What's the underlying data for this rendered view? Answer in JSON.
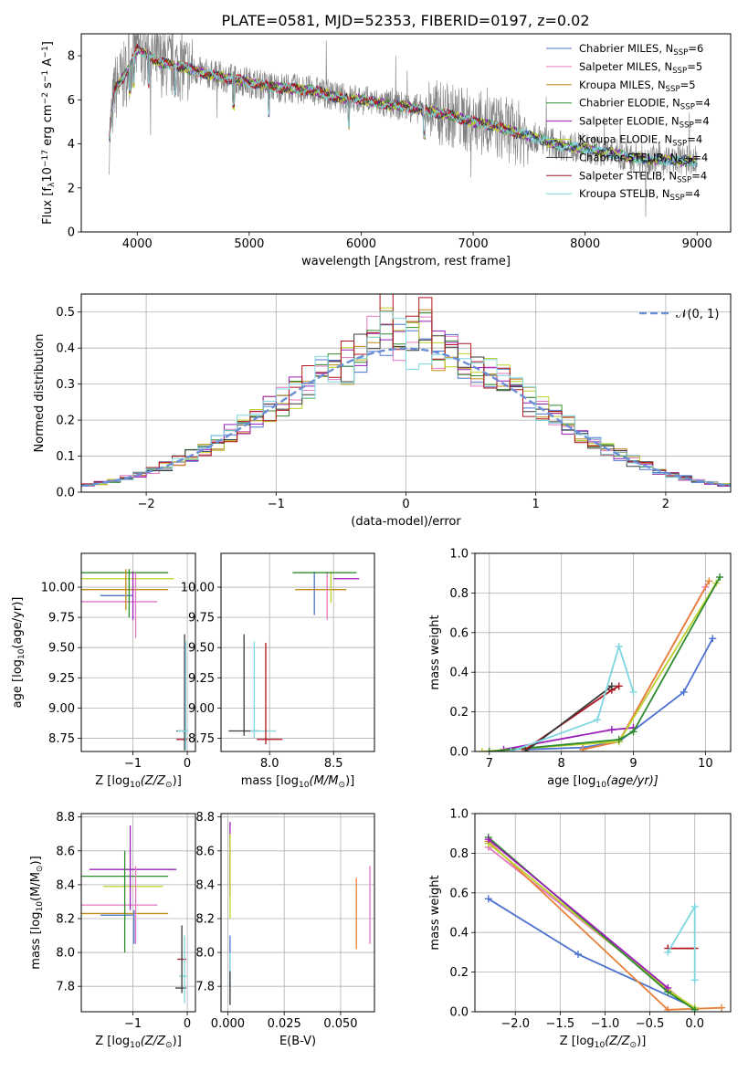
{
  "figure": {
    "title": "PLATE=0581, MJD=52353, FIBERID=0197, z=0.02"
  },
  "legend_entries": [
    {
      "name": "Chabrier MILES, N",
      "sub": "SSP",
      "suffix": "=6",
      "color": "#4c72d0"
    },
    {
      "name": "Salpeter MILES, N",
      "sub": "SSP",
      "suffix": "=5",
      "color": "#e377c2"
    },
    {
      "name": "Kroupa MILES, N",
      "sub": "SSP",
      "suffix": "=5",
      "color": "#c08a16"
    },
    {
      "name": "Chabrier ELODIE, N",
      "sub": "SSP",
      "suffix": "=4",
      "color": "#2e8b2e"
    },
    {
      "name": "Salpeter ELODIE, N",
      "sub": "SSP",
      "suffix": "=4",
      "color": "#9b1fb8"
    },
    {
      "name": "Kroupa ELODIE, N",
      "sub": "SSP",
      "suffix": "=4",
      "color": "#bcd22b"
    },
    {
      "name": "Chabrier STELIB, N",
      "sub": "SSP",
      "suffix": "=4",
      "color": "#3a3a3a"
    },
    {
      "name": "Salpeter STELIB, N",
      "sub": "SSP",
      "suffix": "=4",
      "color": "#b0141c"
    },
    {
      "name": "Kroupa STELIB, N",
      "sub": "SSP",
      "suffix": "=4",
      "color": "#7fd6e0"
    }
  ],
  "chart_data": [
    {
      "id": "spectrum",
      "type": "line",
      "xlabel": "wavelength [Angstrom, rest frame]",
      "ylabel": "Flux [f",
      "ylabel_parts": [
        "Flux [f",
        "λ",
        "10",
        "−17",
        " erg cm",
        "−2",
        " s",
        "−1",
        " A",
        "−1",
        "]"
      ],
      "xlim": [
        3500,
        9300
      ],
      "ylim": [
        0,
        9
      ],
      "xticks": [
        4000,
        5000,
        6000,
        7000,
        8000,
        9000
      ],
      "yticks": [
        0,
        2,
        4,
        6,
        8
      ],
      "continuum": {
        "x": [
          3750,
          3800,
          3900,
          4000,
          4100,
          4200,
          4400,
          4600,
          4800,
          5000,
          5200,
          5400,
          5600,
          5800,
          6000,
          6200,
          6400,
          6600,
          6800,
          7000,
          7200,
          7400,
          7600,
          7800,
          8000,
          8200,
          8400,
          8600,
          8800,
          9000
        ],
        "y": [
          4.2,
          6.5,
          7.2,
          8.3,
          8.0,
          7.7,
          7.5,
          7.2,
          7.0,
          6.8,
          6.6,
          6.5,
          6.4,
          6.1,
          6.0,
          5.8,
          5.7,
          5.5,
          5.3,
          5.0,
          4.8,
          4.5,
          4.2,
          3.9,
          3.8,
          3.6,
          3.4,
          3.3,
          3.25,
          3.2
        ]
      }
    },
    {
      "id": "residuals",
      "type": "line",
      "xlabel": "(data-model)/error",
      "ylabel": "Normed distribution",
      "xlim": [
        -2.5,
        2.5
      ],
      "ylim": [
        0,
        0.55
      ],
      "xticks": [
        -2,
        -1,
        0,
        1,
        2
      ],
      "yticks": [
        0.0,
        0.1,
        0.2,
        0.3,
        0.4,
        0.5
      ],
      "legend": "𝒩(0, 1)",
      "gaussian": {
        "mu": 0,
        "sigma": 1
      },
      "bin_width": 0.1
    },
    {
      "id": "age-vs-Z",
      "type": "scatter",
      "xlabel": "Z [log",
      "xlabel_parts": [
        "Z [log",
        "10",
        "(Z/Z",
        "⊙",
        ")]"
      ],
      "ylabel_parts": [
        "age  [log",
        "10",
        "(age/yr)]"
      ],
      "xlim": [
        -1.95,
        0.15
      ],
      "ylim": [
        8.64,
        10.28
      ],
      "xticks": [
        -1,
        0
      ],
      "yticks": [
        8.75,
        9.0,
        9.25,
        9.5,
        9.75,
        10.0
      ],
      "points": [
        {
          "x": -1.3,
          "y": 9.93,
          "xerr": 0.3,
          "yerr": 0.0,
          "color": "#4c72d0"
        },
        {
          "x": -1.3,
          "y": 9.88,
          "xerr": 0.75,
          "yerr": 0.0,
          "color": "#e377c2"
        },
        {
          "x": -1.3,
          "y": 9.98,
          "xerr": 0.95,
          "yerr": 0.0,
          "color": "#c08a16"
        },
        {
          "x": -1.3,
          "y": 10.12,
          "xerr": 0.95,
          "yerr": 0.0,
          "color": "#2e8b2e"
        },
        {
          "x": -1.3,
          "y": 10.07,
          "xerr": 1.05,
          "yerr": 0.0,
          "color": "#bcd22b"
        },
        {
          "x": -1.13,
          "y": 9.98,
          "xerr": 0.0,
          "yerr": 0.17,
          "color": "#c08a16"
        },
        {
          "x": -1.07,
          "y": 9.95,
          "xerr": 0.0,
          "yerr": 0.2,
          "color": "#2e8b2e"
        },
        {
          "x": -1.0,
          "y": 9.93,
          "xerr": 0.0,
          "yerr": 0.2,
          "color": "#9b1fb8"
        },
        {
          "x": -0.95,
          "y": 9.85,
          "xerr": 0.0,
          "yerr": 0.27,
          "color": "#e377c2"
        },
        {
          "x": -0.1,
          "y": 8.74,
          "xerr": 0.1,
          "yerr": 0.0,
          "color": "#b0141c"
        },
        {
          "x": -0.1,
          "y": 8.81,
          "xerr": 0.1,
          "yerr": 0.0,
          "color": "#3a3a3a"
        },
        {
          "x": -0.05,
          "y": 9.13,
          "xerr": 0.0,
          "yerr": 0.48,
          "color": "#3a3a3a"
        },
        {
          "x": -0.03,
          "y": 9.1,
          "xerr": 0.0,
          "yerr": 0.45,
          "color": "#7fd6e0"
        },
        {
          "x": -0.08,
          "y": 8.81,
          "xerr": 0.1,
          "yerr": 0.0,
          "color": "#7fd6e0"
        }
      ]
    },
    {
      "id": "age-vs-mass",
      "type": "scatter",
      "xlabel_parts": [
        "mass [log",
        "10",
        "(M/M",
        "⊙",
        ")]"
      ],
      "xlim": [
        7.62,
        8.82
      ],
      "ylim": [
        8.64,
        10.28
      ],
      "xticks": [
        8.0,
        8.5
      ],
      "yticks": [
        8.75,
        9.0,
        9.25,
        9.5,
        9.75,
        10.0
      ],
      "points": [
        {
          "x": 8.35,
          "y": 9.95,
          "xerr": 0.0,
          "yerr": 0.18,
          "color": "#4c72d0"
        },
        {
          "x": 8.4,
          "y": 9.98,
          "xerr": 0.2,
          "yerr": 0.0,
          "color": "#c08a16"
        },
        {
          "x": 8.45,
          "y": 9.93,
          "xerr": 0.0,
          "yerr": 0.2,
          "color": "#e377c2"
        },
        {
          "x": 8.5,
          "y": 10.12,
          "xerr": 0.0,
          "yerr": 0.0,
          "color": "#2e8b2e"
        },
        {
          "x": 8.48,
          "y": 10.0,
          "xerr": 0.0,
          "yerr": 0.13,
          "color": "#bcd22b"
        },
        {
          "x": 8.6,
          "y": 10.07,
          "xerr": 0.1,
          "yerr": 0.0,
          "color": "#9b1fb8"
        },
        {
          "x": 8.43,
          "y": 10.12,
          "xerr": 0.25,
          "yerr": 0.0,
          "color": "#2e8b2e"
        },
        {
          "x": 7.8,
          "y": 8.81,
          "xerr": 0.12,
          "yerr": 0.0,
          "color": "#3a3a3a"
        },
        {
          "x": 7.8,
          "y": 9.19,
          "xerr": 0.0,
          "yerr": 0.42,
          "color": "#3a3a3a"
        },
        {
          "x": 7.88,
          "y": 9.15,
          "xerr": 0.0,
          "yerr": 0.4,
          "color": "#7fd6e0"
        },
        {
          "x": 7.95,
          "y": 8.81,
          "xerr": 0.1,
          "yerr": 0.0,
          "color": "#7fd6e0"
        },
        {
          "x": 8.0,
          "y": 8.74,
          "xerr": 0.1,
          "yerr": 0.0,
          "color": "#b0141c"
        },
        {
          "x": 7.97,
          "y": 9.12,
          "xerr": 0.0,
          "yerr": 0.42,
          "color": "#b0141c"
        }
      ]
    },
    {
      "id": "mass-weight-vs-age",
      "type": "line",
      "xlabel_parts": [
        "age  [log",
        "10",
        "(age/yr)]"
      ],
      "ylabel": "mass weight",
      "xlim": [
        6.8,
        10.35
      ],
      "ylim": [
        0,
        1.0
      ],
      "xticks": [
        7,
        8,
        9,
        10
      ],
      "yticks": [
        0.0,
        0.2,
        0.4,
        0.6,
        0.8,
        1.0
      ],
      "series": [
        {
          "color": "#4c72d0",
          "x": [
            7.5,
            8.3,
            8.8,
            9.7,
            10.1
          ],
          "y": [
            0.01,
            0.02,
            0.05,
            0.3,
            0.57
          ]
        },
        {
          "color": "#e377c2",
          "x": [
            8.3,
            8.8,
            10.0
          ],
          "y": [
            0.01,
            0.05,
            0.83
          ]
        },
        {
          "color": "#e8823b",
          "x": [
            8.3,
            8.8,
            10.05
          ],
          "y": [
            0.01,
            0.05,
            0.86
          ]
        },
        {
          "color": "#9b1fb8",
          "x": [
            7.2,
            8.7,
            9.0
          ],
          "y": [
            0.01,
            0.11,
            0.12
          ]
        },
        {
          "color": "#bcd22b",
          "x": [
            6.9,
            8.8,
            10.15
          ],
          "y": [
            0.0,
            0.05,
            0.85
          ]
        },
        {
          "color": "#2e8b2e",
          "x": [
            7.0,
            8.8,
            9.0,
            10.2
          ],
          "y": [
            0.0,
            0.06,
            0.1,
            0.88
          ]
        },
        {
          "color": "#b0141c",
          "x": [
            7.5,
            8.7,
            8.8
          ],
          "y": [
            0.01,
            0.31,
            0.33
          ]
        },
        {
          "color": "#3a3a3a",
          "x": [
            7.5,
            8.7
          ],
          "y": [
            0.0,
            0.33
          ]
        },
        {
          "color": "#7fd6e0",
          "x": [
            7.3,
            8.5,
            8.8,
            9.0
          ],
          "y": [
            0.0,
            0.16,
            0.53,
            0.3
          ]
        }
      ]
    },
    {
      "id": "mass-vs-Z",
      "type": "scatter",
      "xlabel_parts": [
        "Z [log",
        "10",
        "(Z/Z",
        "⊙",
        ")]"
      ],
      "ylabel_parts": [
        "mass [log",
        "10",
        "(M/M",
        "⊙",
        ")]"
      ],
      "xlim": [
        -1.95,
        0.15
      ],
      "ylim": [
        7.65,
        8.82
      ],
      "xticks": [
        -1,
        0
      ],
      "yticks": [
        7.8,
        8.0,
        8.2,
        8.4,
        8.6,
        8.8
      ],
      "points": [
        {
          "x": -1.3,
          "y": 8.22,
          "xerr": 0.3,
          "yerr": 0.0,
          "color": "#4c72d0"
        },
        {
          "x": -1.3,
          "y": 8.28,
          "xerr": 0.75,
          "yerr": 0.0,
          "color": "#e377c2"
        },
        {
          "x": -1.3,
          "y": 8.23,
          "xerr": 0.95,
          "yerr": 0.0,
          "color": "#c08a16"
        },
        {
          "x": -1.3,
          "y": 8.45,
          "xerr": 0.95,
          "yerr": 0.0,
          "color": "#2e8b2e"
        },
        {
          "x": -1.0,
          "y": 8.49,
          "xerr": 0.8,
          "yerr": 0.0,
          "color": "#9b1fb8"
        },
        {
          "x": -1.0,
          "y": 8.39,
          "xerr": 0.55,
          "yerr": 0.0,
          "color": "#bcd22b"
        },
        {
          "x": -1.15,
          "y": 8.3,
          "xerr": 0.0,
          "yerr": 0.3,
          "color": "#2e8b2e"
        },
        {
          "x": -1.05,
          "y": 8.5,
          "xerr": 0.0,
          "yerr": 0.25,
          "color": "#9b1fb8"
        },
        {
          "x": -0.95,
          "y": 8.28,
          "xerr": 0.0,
          "yerr": 0.23,
          "color": "#e377c2"
        },
        {
          "x": -0.98,
          "y": 8.15,
          "xerr": 0.0,
          "yerr": 0.1,
          "color": "#4c72d0"
        },
        {
          "x": -0.1,
          "y": 7.96,
          "xerr": 0.08,
          "yerr": 0.0,
          "color": "#b0141c"
        },
        {
          "x": -0.12,
          "y": 7.79,
          "xerr": 0.1,
          "yerr": 0.0,
          "color": "#3a3a3a"
        },
        {
          "x": -0.08,
          "y": 7.86,
          "xerr": 0.07,
          "yerr": 0.0,
          "color": "#7fd6e0"
        },
        {
          "x": -0.1,
          "y": 7.96,
          "xerr": 0.0,
          "yerr": 0.2,
          "color": "#3a3a3a"
        },
        {
          "x": -0.05,
          "y": 7.9,
          "xerr": 0.0,
          "yerr": 0.2,
          "color": "#7fd6e0"
        }
      ]
    },
    {
      "id": "mass-vs-ebv",
      "type": "scatter",
      "xlabel": "E(B-V)",
      "xlim": [
        -0.003,
        0.065
      ],
      "ylim": [
        7.65,
        8.82
      ],
      "xticks": [
        0.0,
        0.025,
        0.05
      ],
      "xticklabels": [
        "0.000",
        "0.025",
        "0.050"
      ],
      "yticks": [
        7.8,
        8.0,
        8.2,
        8.4,
        8.6,
        8.8
      ],
      "points": [
        {
          "x": 0.001,
          "y": 8.55,
          "xerr": 0.0,
          "yerr": 0.22,
          "color": "#9b1fb8"
        },
        {
          "x": 0.001,
          "y": 8.45,
          "xerr": 0.0,
          "yerr": 0.25,
          "color": "#bcd22b"
        },
        {
          "x": 0.001,
          "y": 7.95,
          "xerr": 0.0,
          "yerr": 0.15,
          "color": "#4c72d0"
        },
        {
          "x": 0.001,
          "y": 7.85,
          "xerr": 0.0,
          "yerr": 0.15,
          "color": "#7fd6e0"
        },
        {
          "x": 0.001,
          "y": 7.79,
          "xerr": 0.0,
          "yerr": 0.1,
          "color": "#3a3a3a"
        },
        {
          "x": 0.057,
          "y": 8.23,
          "xerr": 0.0,
          "yerr": 0.21,
          "color": "#e8823b"
        },
        {
          "x": 0.063,
          "y": 8.28,
          "xerr": 0.0,
          "yerr": 0.23,
          "color": "#e377c2"
        }
      ]
    },
    {
      "id": "mass-weight-vs-Z",
      "type": "line",
      "xlabel_parts": [
        "Z [log",
        "10",
        "(Z/Z",
        "⊙",
        ")]"
      ],
      "ylabel": "mass weight",
      "xlim": [
        -2.45,
        0.4
      ],
      "ylim": [
        0,
        1.0
      ],
      "xticks": [
        -2.0,
        -1.5,
        -1.0,
        -0.5,
        0.0
      ],
      "yticks": [
        0.0,
        0.2,
        0.4,
        0.6,
        0.8,
        1.0
      ],
      "series": [
        {
          "color": "#4c72d0",
          "x": [
            -2.3,
            -1.3,
            0.0
          ],
          "y": [
            0.57,
            0.29,
            0.02
          ]
        },
        {
          "color": "#e377c2",
          "x": [
            -2.3,
            0.0
          ],
          "y": [
            0.83,
            0.01
          ]
        },
        {
          "color": "#e8823b",
          "x": [
            -2.3,
            -0.3,
            0.3
          ],
          "y": [
            0.86,
            0.01,
            0.02
          ]
        },
        {
          "color": "#bcd22b",
          "x": [
            -2.3,
            -0.3,
            0.0
          ],
          "y": [
            0.85,
            0.11,
            0.02
          ]
        },
        {
          "color": "#2e8b2e",
          "x": [
            -2.3,
            -0.3,
            0.0
          ],
          "y": [
            0.88,
            0.1,
            0.01
          ]
        },
        {
          "color": "#9b1fb8",
          "x": [
            -2.3,
            -0.3
          ],
          "y": [
            0.87,
            0.12
          ]
        },
        {
          "color": "#b0141c",
          "x": [
            -0.3,
            0.0
          ],
          "y": [
            0.32,
            0.32
          ]
        },
        {
          "color": "#7fd6e0",
          "x": [
            -0.3,
            0.0,
            0.0
          ],
          "y": [
            0.3,
            0.53,
            0.16
          ]
        }
      ]
    }
  ]
}
